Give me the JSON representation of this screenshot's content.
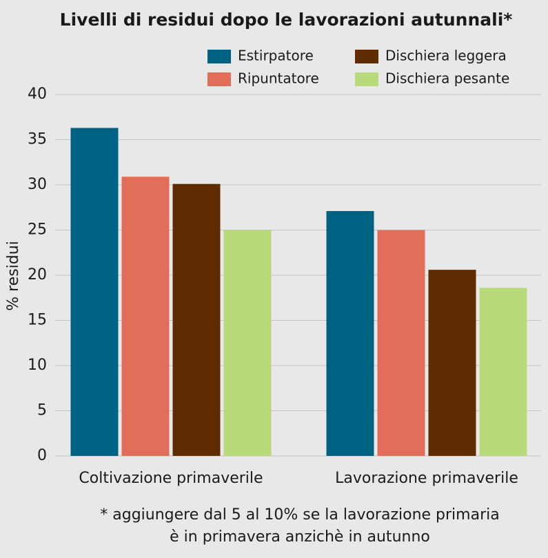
{
  "chart_data": {
    "type": "bar",
    "title": "Livelli di residui dopo le lavorazioni autunnali*",
    "y_label": "% residui",
    "categories": [
      "Coltivazione primaverile",
      "Lavorazione primaverile"
    ],
    "series": [
      {
        "name": "Estirpatore",
        "color": "#006282",
        "values": [
          36.3,
          27.1
        ]
      },
      {
        "name": "Ripuntatore",
        "color": "#e06e58",
        "values": [
          30.9,
          25.0
        ]
      },
      {
        "name": "Dischiera leggera",
        "color": "#5e2c00",
        "values": [
          30.1,
          20.6
        ]
      },
      {
        "name": "Dischiera pesante",
        "color": "#b8da7a",
        "values": [
          25.0,
          18.6
        ]
      }
    ],
    "ylim": [
      0,
      40
    ],
    "yticks": [
      0,
      5,
      10,
      15,
      20,
      25,
      30,
      35,
      40
    ],
    "grid": true,
    "note": [
      "* aggiungere dal 5 al 10% se la lavorazione primaria",
      "è in primavera anzichè in autunno"
    ]
  }
}
